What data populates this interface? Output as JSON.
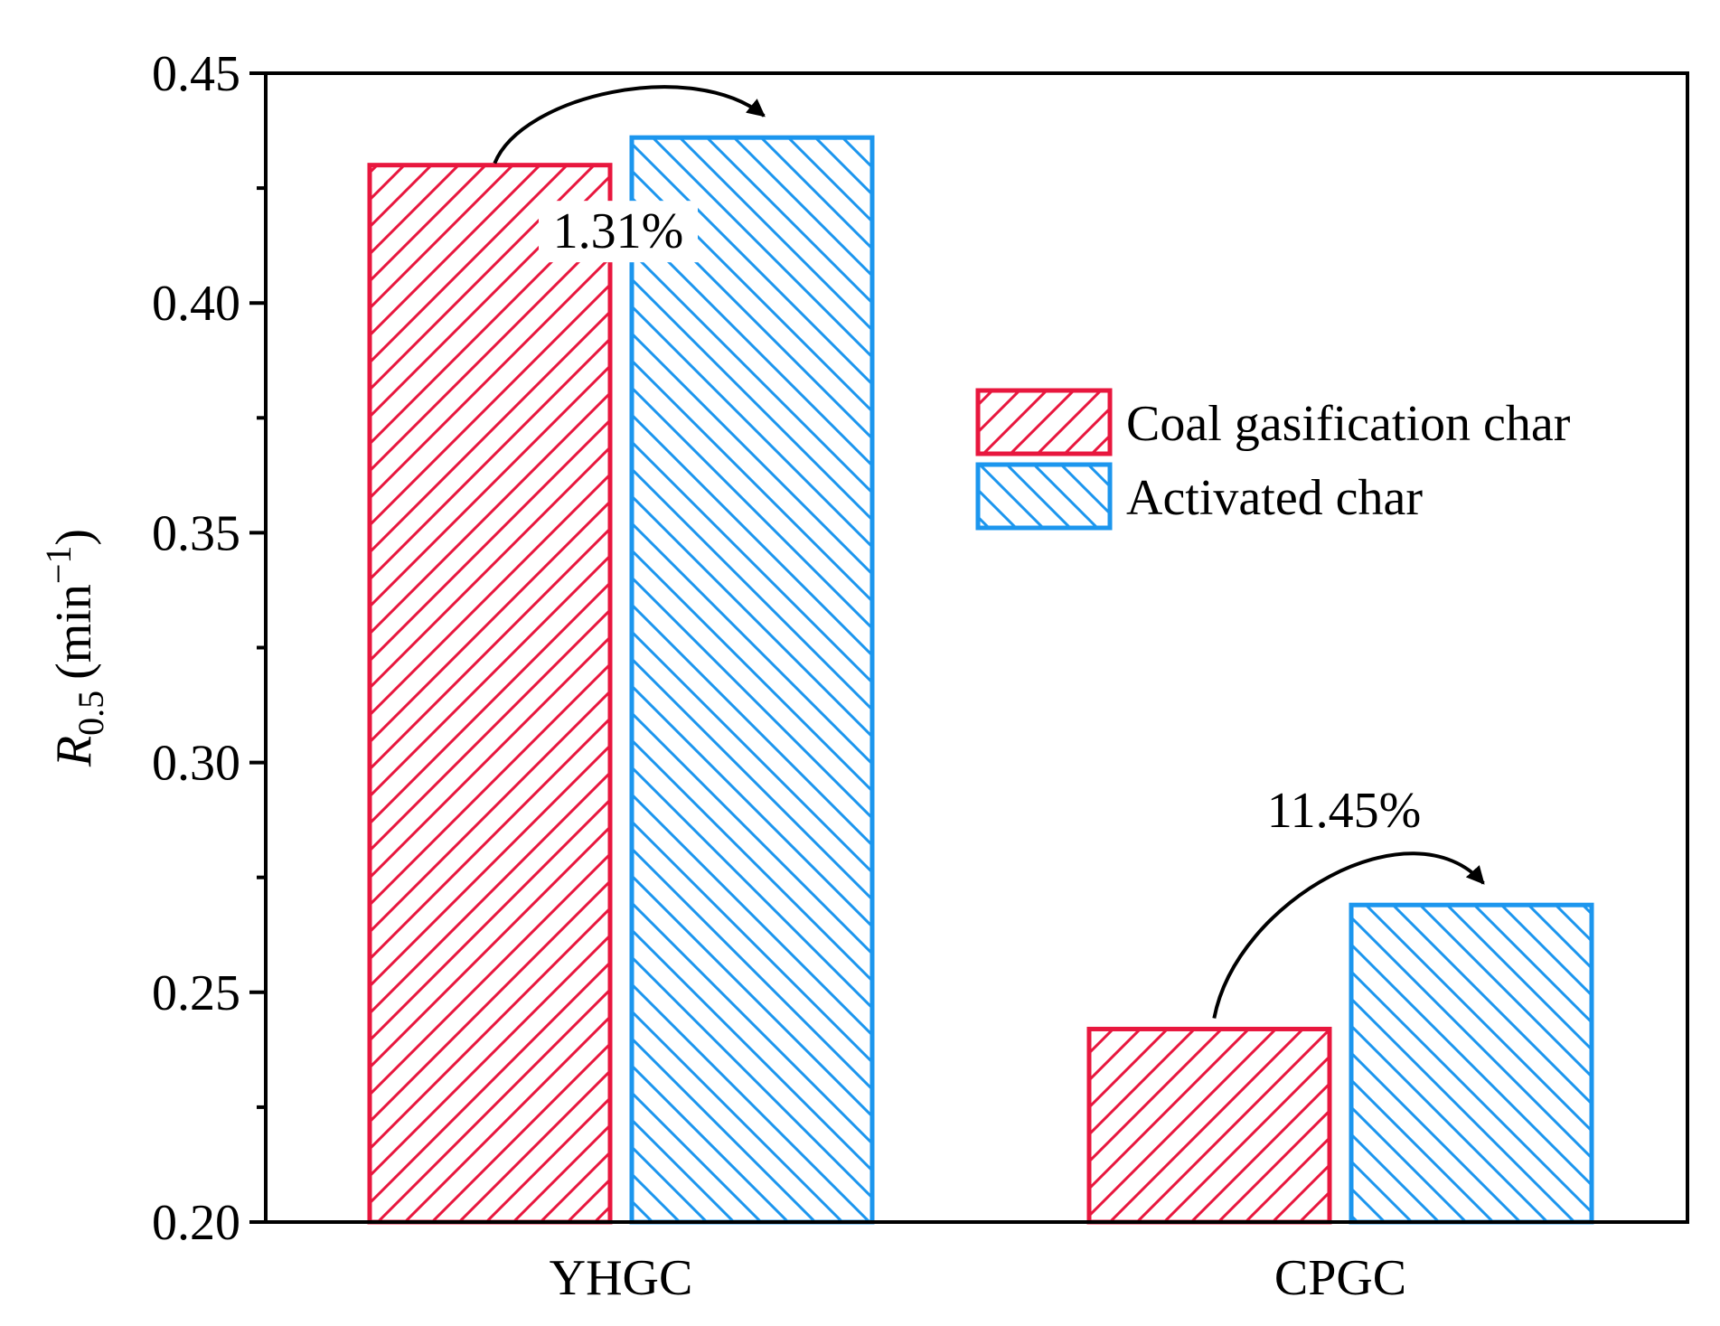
{
  "chart_data": {
    "type": "bar",
    "title": "",
    "xlabel": "",
    "ylabel": {
      "symbol": "R",
      "subscript": "0.5",
      "unit_open": "(min",
      "unit_sup": "−1",
      "unit_close": ")"
    },
    "ylim": [
      0.2,
      0.45
    ],
    "yticks": [
      "0.20",
      "0.25",
      "0.30",
      "0.35",
      "0.40",
      "0.45"
    ],
    "categories": [
      "YHGC",
      "CPGC"
    ],
    "series": [
      {
        "name": "Coal gasification char",
        "values": [
          0.43,
          0.242
        ],
        "color": "#e8173e",
        "hatch": "forward"
      },
      {
        "name": "Activated char",
        "values": [
          0.436,
          0.269
        ],
        "color": "#1c96ee",
        "hatch": "backward"
      }
    ],
    "annotations": [
      {
        "category": "YHGC",
        "text": "1.31%"
      },
      {
        "category": "CPGC",
        "text": "11.45%"
      }
    ],
    "legend": {
      "position": "middle-right"
    },
    "grid": false
  }
}
